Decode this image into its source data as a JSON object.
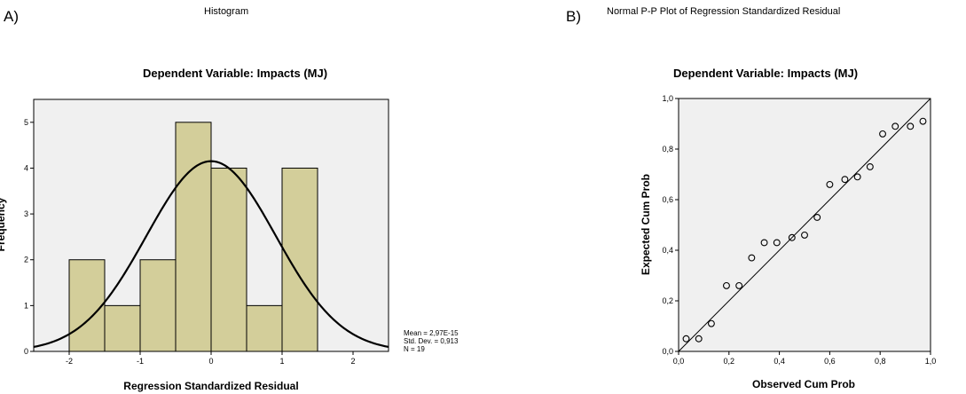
{
  "panels": {
    "a_label": "A)",
    "b_label": "B)"
  },
  "chart_data": [
    {
      "type": "bar",
      "title": "Histogram",
      "subtitle": "Dependent Variable: Impacts (MJ)",
      "xlabel": "Regression Standardized Residual",
      "ylabel": "Frequency",
      "bin_edges": [
        -2.0,
        -1.5,
        -1.0,
        -0.5,
        0.0,
        0.5,
        1.0,
        1.5
      ],
      "values": [
        2,
        1,
        2,
        5,
        4,
        1,
        4
      ],
      "xlim": [
        -2.5,
        2.5
      ],
      "ylim": [
        0,
        5.5
      ],
      "xticks": [
        -2,
        -1,
        0,
        1,
        2
      ],
      "xtick_labels": [
        "-2",
        "-1",
        "0",
        "1",
        "2"
      ],
      "yticks": [
        0,
        1,
        2,
        3,
        4,
        5
      ],
      "ytick_labels": [
        "0",
        "1",
        "2",
        "3",
        "4",
        "5"
      ],
      "normal_curve": {
        "mean": 0,
        "sd": 0.913,
        "n": 19,
        "bin_width": 0.5
      },
      "stats": [
        "Mean = 2,97E-15",
        "Std. Dev. = 0,913",
        "N = 19"
      ],
      "colors": {
        "bar": "#d3ce9a",
        "plot_bg": "#f0f0f0",
        "curve": "#000000"
      }
    },
    {
      "type": "scatter",
      "title": "Normal P-P Plot of Regression Standardized Residual",
      "subtitle": "Dependent Variable: Impacts (MJ)",
      "xlabel": "Observed Cum Prob",
      "ylabel": "Expected Cum Prob",
      "xlim": [
        0,
        1
      ],
      "ylim": [
        0,
        1
      ],
      "ticks": [
        0,
        0.2,
        0.4,
        0.6,
        0.8,
        1.0
      ],
      "tick_labels": [
        "0,0",
        "0,2",
        "0,4",
        "0,6",
        "0,8",
        "1,0"
      ],
      "reference_line": [
        [
          0,
          0
        ],
        [
          1,
          1
        ]
      ],
      "points": [
        {
          "x": 0.03,
          "y": 0.05
        },
        {
          "x": 0.08,
          "y": 0.05
        },
        {
          "x": 0.13,
          "y": 0.11
        },
        {
          "x": 0.19,
          "y": 0.26
        },
        {
          "x": 0.24,
          "y": 0.26
        },
        {
          "x": 0.29,
          "y": 0.37
        },
        {
          "x": 0.34,
          "y": 0.43
        },
        {
          "x": 0.39,
          "y": 0.43
        },
        {
          "x": 0.45,
          "y": 0.45
        },
        {
          "x": 0.5,
          "y": 0.46
        },
        {
          "x": 0.55,
          "y": 0.53
        },
        {
          "x": 0.6,
          "y": 0.66
        },
        {
          "x": 0.66,
          "y": 0.68
        },
        {
          "x": 0.71,
          "y": 0.69
        },
        {
          "x": 0.76,
          "y": 0.73
        },
        {
          "x": 0.81,
          "y": 0.86
        },
        {
          "x": 0.86,
          "y": 0.89
        },
        {
          "x": 0.92,
          "y": 0.89
        },
        {
          "x": 0.97,
          "y": 0.91
        }
      ],
      "colors": {
        "plot_bg": "#f0f0f0",
        "marker": "#000000"
      }
    }
  ]
}
